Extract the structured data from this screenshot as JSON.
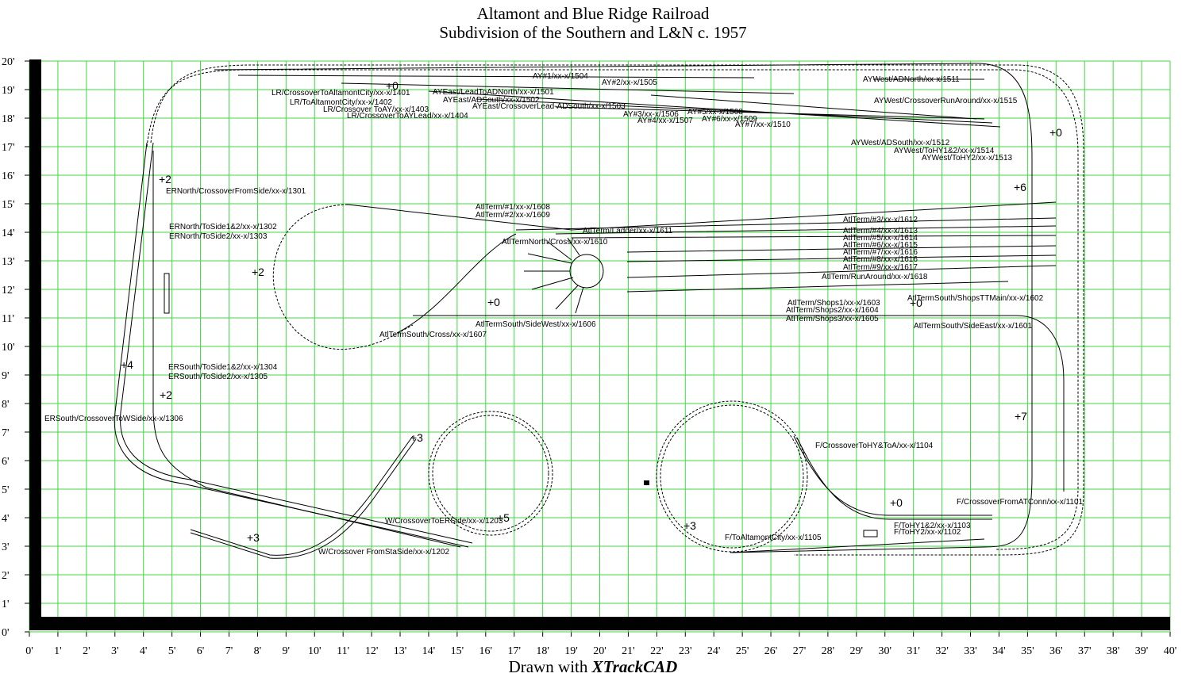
{
  "header": {
    "title": "Altamont and Blue Ridge Railroad",
    "subtitle": "Subdivision of the Southern and L&N c. 1957"
  },
  "x_axis": {
    "labels": [
      "0'",
      "1'",
      "2'",
      "3'",
      "4'",
      "5'",
      "6'",
      "7'",
      "8'",
      "9'",
      "10'",
      "11'",
      "12'",
      "13'",
      "14'",
      "15'",
      "16'",
      "17'",
      "18'",
      "19'",
      "20'",
      "21'",
      "22'",
      "23'",
      "24'",
      "25'",
      "26'",
      "27'",
      "28'",
      "29'",
      "30'",
      "31'",
      "32'",
      "33'",
      "34'",
      "35'",
      "36'",
      "37'",
      "38'",
      "39'",
      "40'"
    ]
  },
  "y_axis": {
    "labels": [
      "0'",
      "1'",
      "2'",
      "3'",
      "4'",
      "5'",
      "6'",
      "7'",
      "8'",
      "9'",
      "10'",
      "11'",
      "12'",
      "13'",
      "14'",
      "15'",
      "16'",
      "17'",
      "18'",
      "19'",
      "20'"
    ]
  },
  "turnouts": [
    "LR/CrossoverToAltamontCity/xx-x/1401",
    "LR/ToAltamontCity/xx-x/1402",
    "LR/Crossover ToAY/xx-x/1403",
    "LR/CrossoverToAYLead/xx-x/1404",
    "AY#1/xx-x/1504",
    "AY#2/xx-x/1505",
    "AYEast/LeadToADNorth/xx-x/1501",
    "AYEast/ADSouth/xx-x/1502",
    "AYEast/CrossoverLead-ADSouth/xx-x/1503",
    "AY#3/xx-x/1506",
    "AY#5/xx-x/1508",
    "AY#4/xx-x/1507",
    "AY#6/xx-x/1509",
    "AY#7/xx-x/1510",
    "AYWest/ADNorth/xx-x/1511",
    "AYWest/CrossoverRunAround/xx-x/1515",
    "AYWest/ADSouth/xx-x/1512",
    "AYWest/ToHY1&2/xx-x/1514",
    "AYWest/ToHY2/xx-x/1513",
    "ERNorth/CrossoverFromSide/xx-x/1301",
    "ERNorth/ToSide1&2/xx-x/1302",
    "ERNorth/ToSide2/xx-x/1303",
    "AtlTerm/#1/xx-x/1608",
    "AtlTerm/#2/xx-x/1609",
    "AtlTerm/Ladder/xx-x/1611",
    "AtlTermNorth/Cross/xx-x/1610",
    "AtlTerm/#3/xx-x/1612",
    "AtlTerm/#4/xx-x/1613",
    "AtlTerm/#5/xx-x/1614",
    "AtlTerm/#6/xx-x/1615",
    "AtlTerm/#7/xx-x/1616",
    "AtlTerm/#8/xx-x/1616",
    "AtlTerm/#9/xx-x/1617",
    "AtlTerm/RunAround/xx-x/1618",
    "AtlTerm/Shops1/xx-x/1603",
    "AtlTerm/Shops2/xx-x/1604",
    "AtlTerm/Shops3/xx-x/1605",
    "AtlTermSouth/ShopsTTMain/xx-x/1602",
    "AtlTermSouth/SideEast/xx-x/1601",
    "AtlTermSouth/SideWest/xx-x/1606",
    "AtlTermSouth/Cross/xx-x/1607",
    "ERSouth/ToSide1&2/xx-x/1304",
    "ERSouth/ToSide2/xx-x/1305",
    "ERSouth/CrossoverToWSide/xx-x/1306",
    "F/CrossoverToHY&ToA/xx-x/1104",
    "F/CrossoverFromATConn/xx-x/1101",
    "F/ToHY1&2/xx-x/1103",
    "F/ToHY2/xx-x/1102",
    "F/ToAltamontCity/xx-x/1105",
    "W/CrossoverToERSide/xx-x/1203",
    "W/Crossover FromStaSide/xx-x/1202"
  ],
  "elevations": [
    "+0",
    "+2",
    "+2",
    "+0",
    "+4",
    "+2",
    "+3",
    "+5",
    "+3",
    "+3",
    "+0",
    "+0",
    "+0",
    "+6",
    "+7"
  ],
  "footer": {
    "prefix": "Drawn with",
    "brand": "XTrackCAD"
  }
}
